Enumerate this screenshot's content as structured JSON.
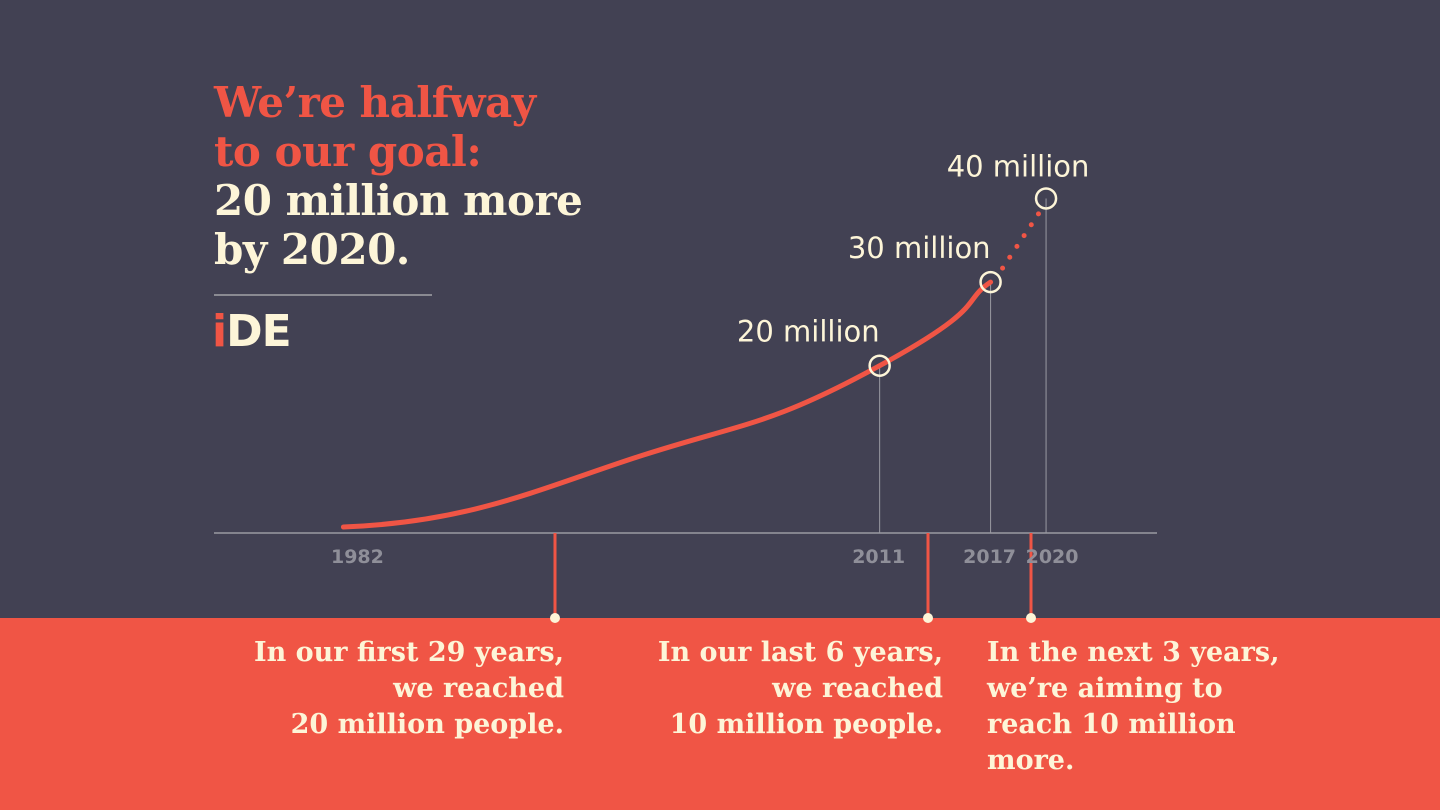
{
  "headline": {
    "line1": "We’re halfway",
    "line2": "to our goal:",
    "line3": "20 million more",
    "line4": "by 2020."
  },
  "logo": {
    "accent_letter": "i",
    "rest": "DE"
  },
  "colors": {
    "background": "#424153",
    "accent": "#f05545",
    "cream": "#fdf5d8",
    "tick_text": "#8f8f99",
    "axis": "#9a9aa2"
  },
  "chart_data": {
    "type": "line",
    "series": [
      {
        "values": [
          {
            "x": 1982,
            "y": 0,
            "label": "1982"
          },
          {
            "x": 2011,
            "y": 20,
            "label": "20 million"
          },
          {
            "x": 2017,
            "y": 30,
            "label": "30 million"
          },
          {
            "x": 2020,
            "y": 40,
            "label": "40 million",
            "projected": true
          }
        ]
      }
    ],
    "tick_labels": [
      "1982",
      "2011",
      "2017",
      "2020"
    ],
    "xlim": [
      1975,
      2026
    ],
    "ylim": [
      0,
      44
    ],
    "grid": false
  },
  "captions": [
    {
      "text": "In our first 29 years,\nwe reached\n20 million people."
    },
    {
      "text": "In our last 6 years,\nwe reached\n10 million people."
    },
    {
      "text": "In the next 3 years,\nwe’re aiming to\nreach 10 million\nmore."
    }
  ]
}
